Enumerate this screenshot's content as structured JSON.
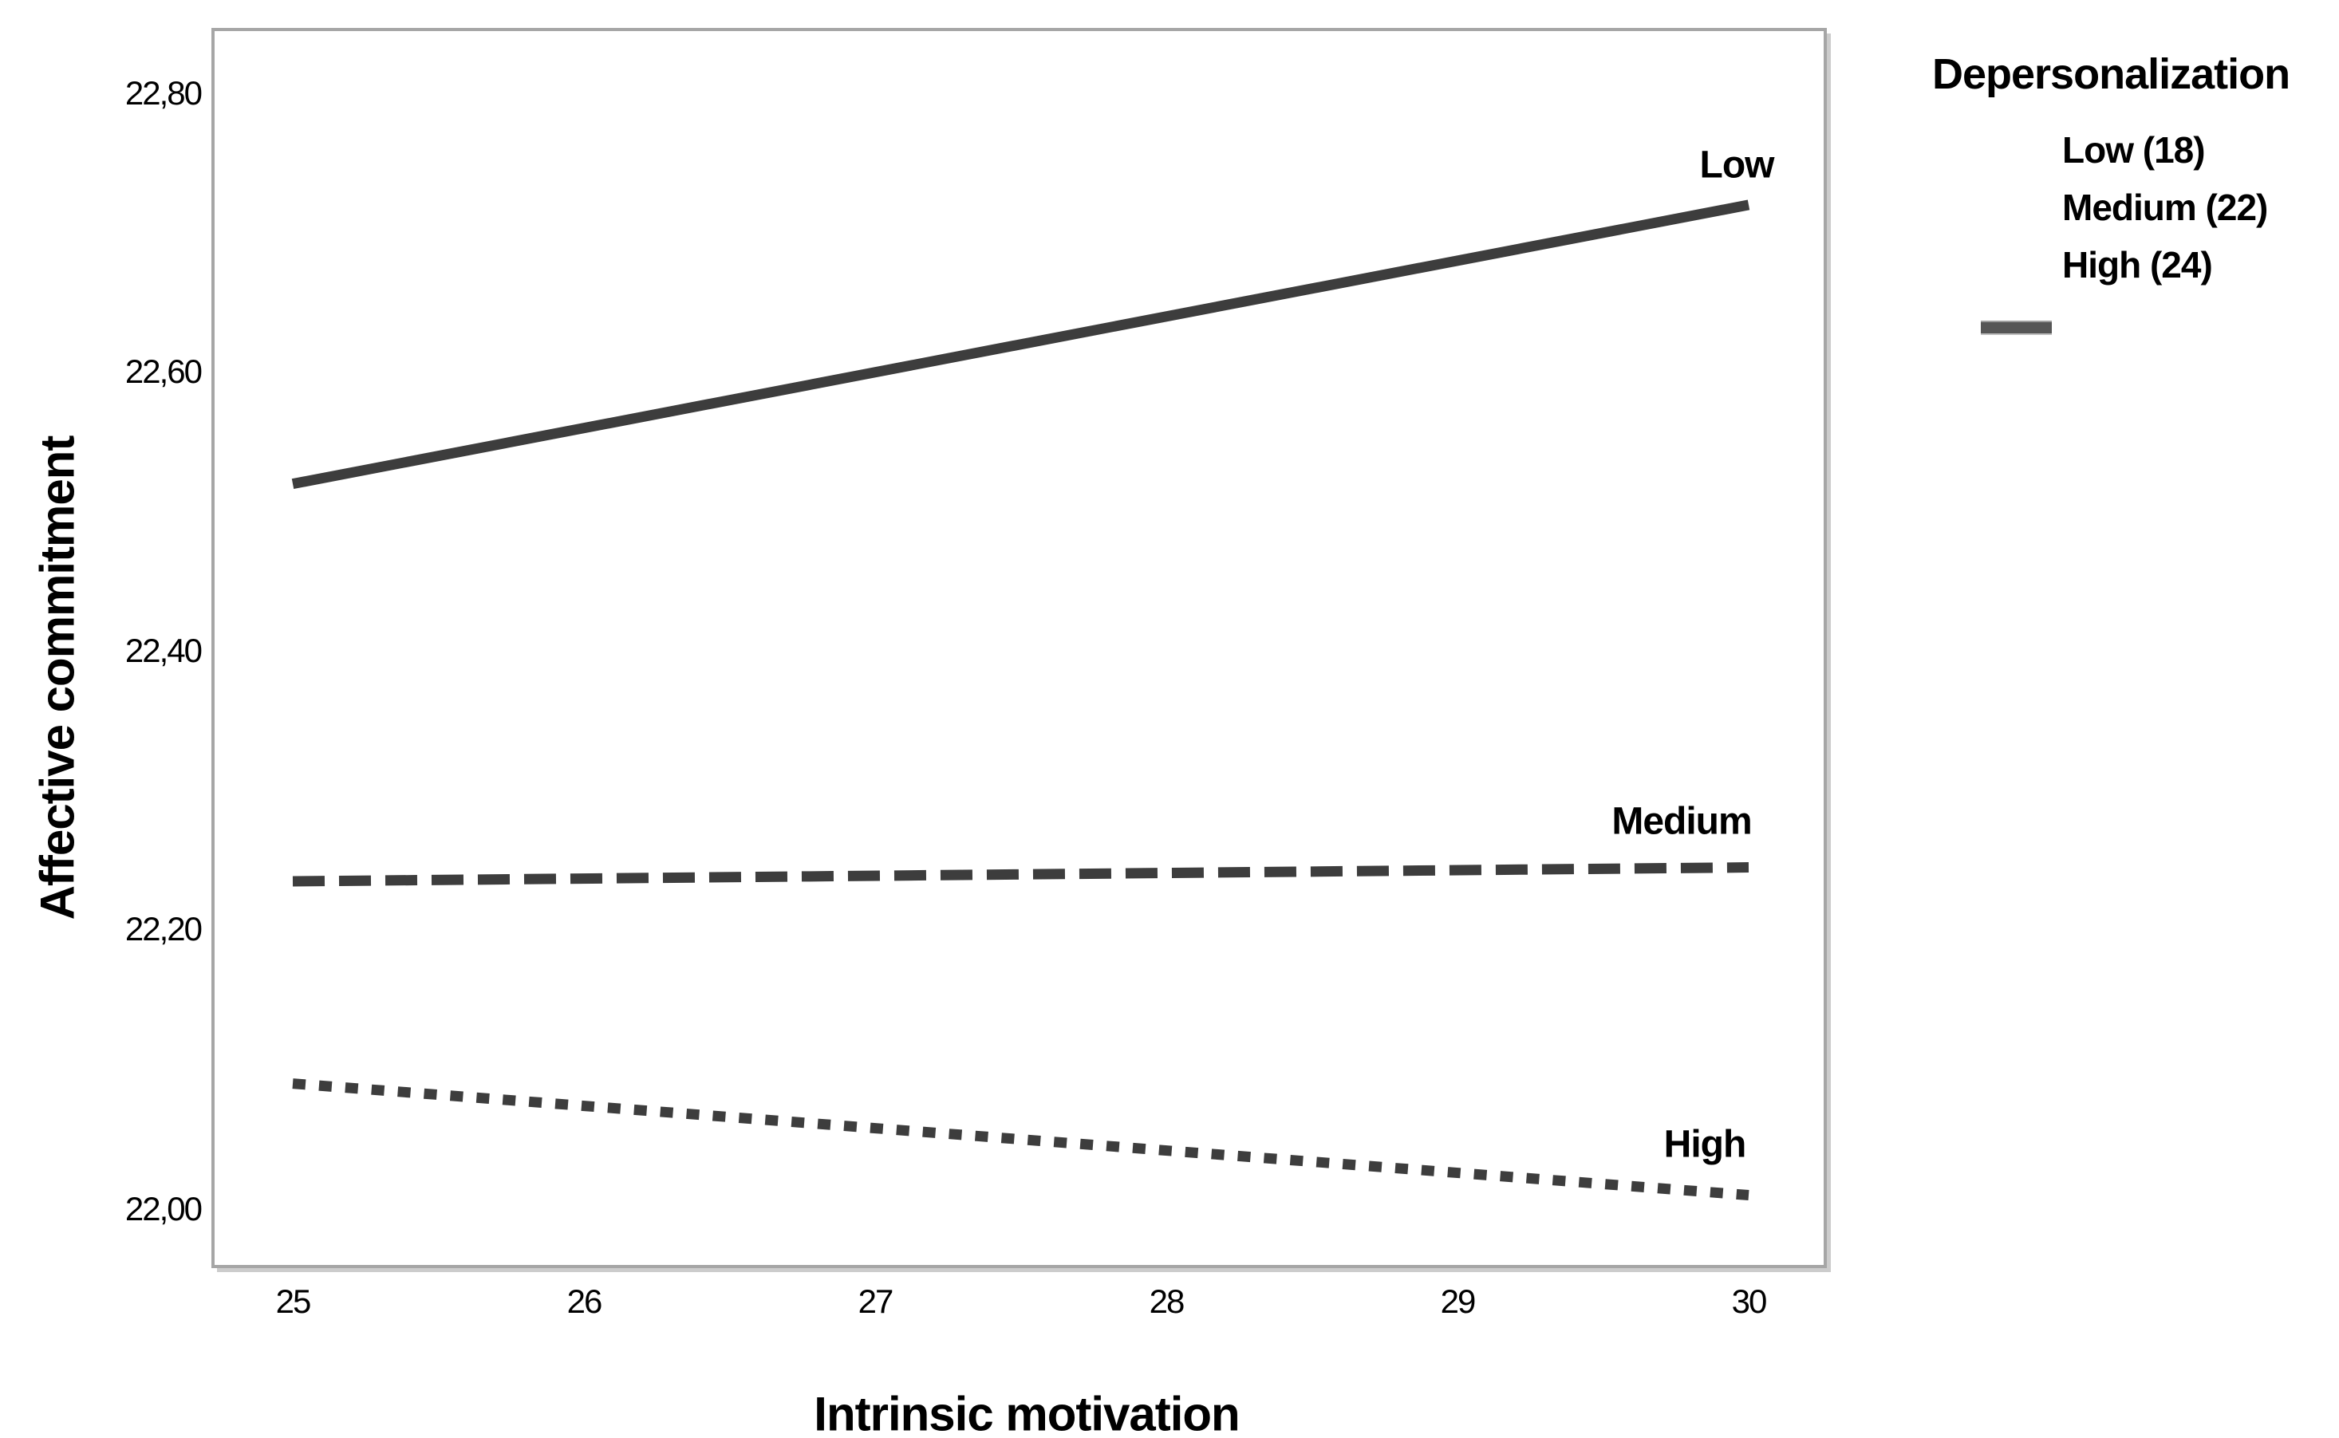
{
  "chart_data": {
    "type": "line",
    "xlabel": "Intrinsic motivation",
    "ylabel": "Affective commitment",
    "xlim": [
      24.72,
      30.27
    ],
    "ylim": [
      21.96,
      22.85
    ],
    "grid": false,
    "xticks": [
      25,
      26,
      27,
      28,
      29,
      30
    ],
    "xtick_labels": [
      "25",
      "26",
      "27",
      "28",
      "29",
      "30"
    ],
    "yticks": [
      22.8,
      22.6,
      22.4,
      22.2,
      22.0
    ],
    "ytick_labels": [
      "22,80",
      "22,60",
      "22,40",
      "22,20",
      "22,00"
    ],
    "line_color": "#3d3d3d",
    "series": [
      {
        "name": "Low",
        "style": "solid",
        "x": [
          25,
          30
        ],
        "y": [
          22.52,
          22.72
        ]
      },
      {
        "name": "Medium",
        "style": "dashed",
        "x": [
          25,
          30
        ],
        "y": [
          22.235,
          22.245
        ]
      },
      {
        "name": "High",
        "style": "dotted",
        "x": [
          25,
          30
        ],
        "y": [
          22.09,
          22.01
        ]
      }
    ],
    "legend": {
      "title": "Depersonalization",
      "entries": [
        "Low (18)",
        "Medium (22)",
        "High (24)"
      ],
      "position": "right"
    }
  }
}
